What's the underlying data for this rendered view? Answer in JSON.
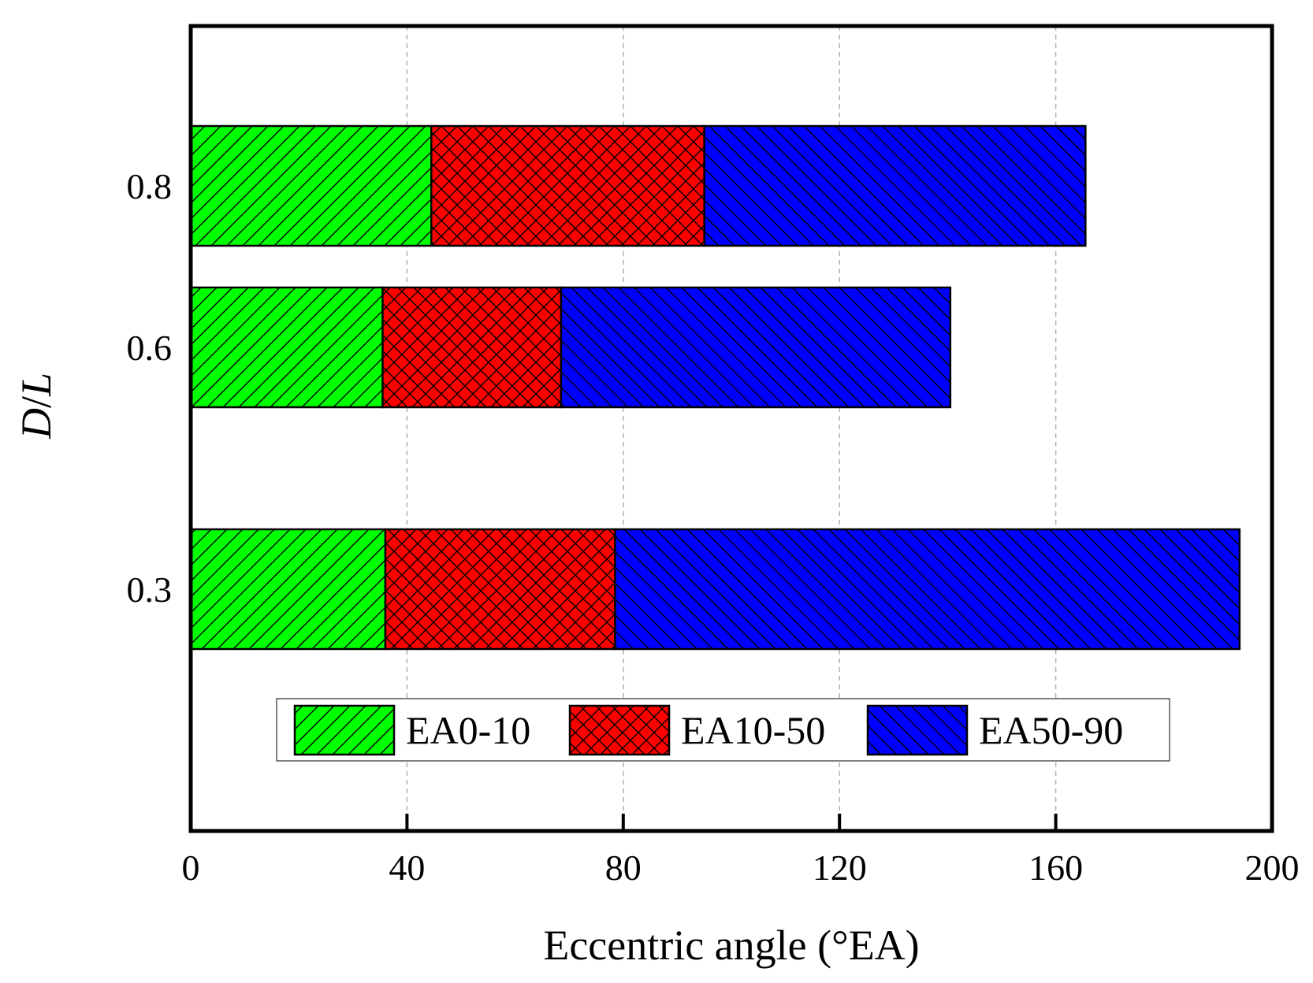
{
  "chart_data": {
    "type": "bar",
    "orientation": "horizontal",
    "stacked": true,
    "categories": [
      "0.8",
      "0.6",
      "0.3"
    ],
    "series": [
      {
        "name": "EA0-10",
        "color": "#00ff00",
        "pattern": "forward-hatch",
        "values": [
          44.5,
          35.5,
          36
        ]
      },
      {
        "name": "EA10-50",
        "color": "#ff0000",
        "pattern": "cross-hatch",
        "values": [
          50.5,
          33,
          42.5
        ]
      },
      {
        "name": "EA50-90",
        "color": "#0000ff",
        "pattern": "back-hatch",
        "values": [
          70.5,
          72,
          115.5
        ]
      }
    ],
    "xlabel": "Eccentric angle (°EA)",
    "ylabel_italic_part1": "D",
    "ylabel_sep": "/",
    "ylabel_italic_part2": "L",
    "xlim": [
      0,
      200
    ],
    "xticks": [
      "0",
      "40",
      "80",
      "120",
      "160",
      "200"
    ],
    "grid": "vertical-dashed",
    "legend_position": "bottom-center"
  }
}
